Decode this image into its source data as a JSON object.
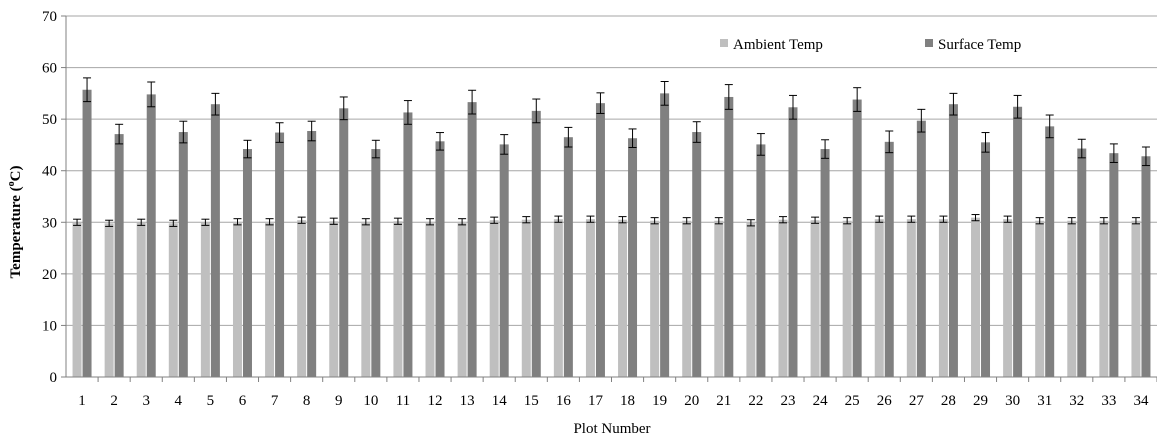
{
  "chart_data": {
    "type": "bar",
    "xlabel": "Plot Number",
    "ylabel": "Temperature (oC)",
    "ylim": [
      0,
      70
    ],
    "yticks": [
      0,
      10,
      20,
      30,
      40,
      50,
      60,
      70
    ],
    "grid": "horizontal",
    "legend_position": "top-right",
    "categories": [
      "1",
      "2",
      "3",
      "4",
      "5",
      "6",
      "7",
      "8",
      "9",
      "10",
      "11",
      "12",
      "13",
      "14",
      "15",
      "16",
      "17",
      "18",
      "19",
      "20",
      "21",
      "22",
      "23",
      "24",
      "25",
      "26",
      "27",
      "28",
      "29",
      "30",
      "31",
      "32",
      "33",
      "34"
    ],
    "series": [
      {
        "name": "Ambient Temp",
        "color": "#bfbfbf",
        "values": [
          30.0,
          29.8,
          30.0,
          29.8,
          30.0,
          30.1,
          30.1,
          30.4,
          30.2,
          30.1,
          30.2,
          30.1,
          30.1,
          30.4,
          30.5,
          30.6,
          30.6,
          30.5,
          30.3,
          30.3,
          30.3,
          29.9,
          30.5,
          30.4,
          30.3,
          30.6,
          30.6,
          30.6,
          30.9,
          30.6,
          30.3,
          30.3,
          30.3,
          30.3
        ],
        "errors": [
          0.6,
          0.6,
          0.6,
          0.6,
          0.6,
          0.6,
          0.6,
          0.6,
          0.6,
          0.6,
          0.6,
          0.6,
          0.6,
          0.6,
          0.6,
          0.6,
          0.6,
          0.6,
          0.6,
          0.6,
          0.6,
          0.6,
          0.6,
          0.6,
          0.6,
          0.6,
          0.6,
          0.6,
          0.6,
          0.6,
          0.6,
          0.6,
          0.6,
          0.6
        ]
      },
      {
        "name": "Surface Temp",
        "color": "#808080",
        "values": [
          55.7,
          47.1,
          54.8,
          47.5,
          52.9,
          44.2,
          47.4,
          47.7,
          52.1,
          44.2,
          51.3,
          45.7,
          53.3,
          45.1,
          51.6,
          46.5,
          53.1,
          46.3,
          55.0,
          47.5,
          54.3,
          45.1,
          52.3,
          44.2,
          53.8,
          45.6,
          49.7,
          52.9,
          45.5,
          52.4,
          48.6,
          44.3,
          43.4,
          42.8
        ],
        "errors": [
          2.3,
          1.9,
          2.4,
          2.1,
          2.1,
          1.7,
          1.9,
          1.9,
          2.2,
          1.7,
          2.3,
          1.7,
          2.3,
          1.9,
          2.3,
          1.9,
          2.0,
          1.8,
          2.3,
          2.0,
          2.4,
          2.1,
          2.3,
          1.8,
          2.3,
          2.1,
          2.2,
          2.1,
          1.9,
          2.2,
          2.2,
          1.8,
          1.8,
          1.8
        ]
      }
    ]
  }
}
